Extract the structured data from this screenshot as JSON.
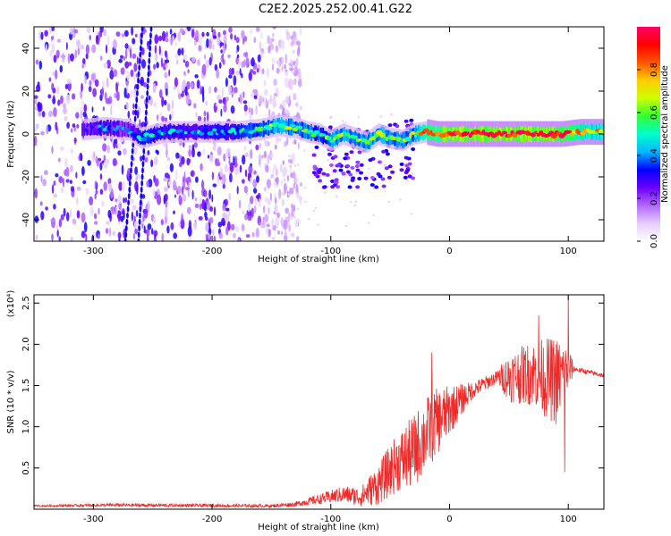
{
  "title": "C2E2.2025.252.00.41.G22",
  "colors": {
    "background": "#ffffff",
    "axis": "#000000",
    "snr_line": "#ee2b2b",
    "colormap": [
      "#ffffff",
      "#e6ccff",
      "#b266ff",
      "#6a00ff",
      "#0000ff",
      "#00b7ff",
      "#00ffcc",
      "#33ff33",
      "#ccff00",
      "#ffcc00",
      "#ff5500",
      "#ff0000",
      "#ff0066"
    ]
  },
  "chart_data": [
    {
      "type": "heatmap",
      "name": "spectrogram",
      "xlabel": "Height of straight line (km)",
      "ylabel": "Frequency (Hz)",
      "xlim": [
        -350,
        130
      ],
      "ylim": [
        -50,
        50
      ],
      "xticks": [
        -300,
        -200,
        -100,
        0,
        100
      ],
      "xtick_labels": [
        "-300",
        "-200",
        "-100",
        "0",
        "100"
      ],
      "yticks": [
        -40,
        -20,
        0,
        20,
        40
      ],
      "ytick_labels": [
        "-40",
        "-20",
        "0",
        "20",
        "40"
      ],
      "signal_track": [
        {
          "x": -310,
          "f": 2,
          "amp": 0.3
        },
        {
          "x": -290,
          "f": 3,
          "amp": 0.35
        },
        {
          "x": -270,
          "f": 2,
          "amp": 0.3
        },
        {
          "x": -260,
          "f": -2,
          "amp": 0.45
        },
        {
          "x": -240,
          "f": 1,
          "amp": 0.4
        },
        {
          "x": -220,
          "f": 1,
          "amp": 0.4
        },
        {
          "x": -200,
          "f": 1,
          "amp": 0.4
        },
        {
          "x": -180,
          "f": 1,
          "amp": 0.45
        },
        {
          "x": -160,
          "f": 2,
          "amp": 0.5
        },
        {
          "x": -145,
          "f": 4,
          "amp": 0.6
        },
        {
          "x": -130,
          "f": 3,
          "amp": 0.55
        },
        {
          "x": -120,
          "f": 1,
          "amp": 0.55
        },
        {
          "x": -110,
          "f": 0,
          "amp": 0.5
        },
        {
          "x": -100,
          "f": -3,
          "amp": 0.55
        },
        {
          "x": -90,
          "f": 0,
          "amp": 0.6
        },
        {
          "x": -80,
          "f": -2,
          "amp": 0.6
        },
        {
          "x": -70,
          "f": -4,
          "amp": 0.6
        },
        {
          "x": -60,
          "f": 0,
          "amp": 0.6
        },
        {
          "x": -50,
          "f": -2,
          "amp": 0.6
        },
        {
          "x": -40,
          "f": -3,
          "amp": 0.55
        },
        {
          "x": -30,
          "f": 0,
          "amp": 0.6
        },
        {
          "x": -20,
          "f": 1,
          "amp": 0.8
        },
        {
          "x": -10,
          "f": 0,
          "amp": 0.85
        },
        {
          "x": 0,
          "f": 0,
          "amp": 0.95
        },
        {
          "x": 20,
          "f": 0,
          "amp": 0.95
        },
        {
          "x": 40,
          "f": 0,
          "amp": 0.95
        },
        {
          "x": 60,
          "f": 0,
          "amp": 0.95
        },
        {
          "x": 80,
          "f": 0,
          "amp": 0.95
        },
        {
          "x": 95,
          "f": 0,
          "amp": 0.9
        },
        {
          "x": 110,
          "f": 1,
          "amp": 0.75
        },
        {
          "x": 130,
          "f": 1,
          "amp": 0.7
        }
      ],
      "noise_region_x": [
        -350,
        -150
      ],
      "colorbar": {
        "label": "Normalized spectral amplitude",
        "range": [
          0,
          1
        ],
        "ticks": [
          0.0,
          0.2,
          0.4,
          0.6,
          0.8
        ],
        "tick_labels": [
          "0.0",
          "0.2",
          "0.4",
          "0.6",
          "0.8"
        ]
      }
    },
    {
      "type": "line",
      "name": "snr",
      "xlabel": "Height of straight line (km)",
      "ylabel": "SNR (10 * v/v)",
      "ylabel_multiplier": "(x10⁴)",
      "xlim": [
        -350,
        130
      ],
      "ylim": [
        0,
        2.6
      ],
      "xticks": [
        -300,
        -200,
        -100,
        0,
        100
      ],
      "xtick_labels": [
        "-300",
        "-200",
        "-100",
        "0",
        "100"
      ],
      "yticks": [
        0.5,
        1.0,
        1.5,
        2.0,
        2.5
      ],
      "ytick_labels": [
        "0.5",
        "1.0",
        "1.5",
        "2.0",
        "2.5"
      ],
      "envelope": [
        {
          "x": -350,
          "mean": 0.04,
          "spread": 0.01
        },
        {
          "x": -280,
          "mean": 0.05,
          "spread": 0.02
        },
        {
          "x": -150,
          "mean": 0.04,
          "spread": 0.02
        },
        {
          "x": -130,
          "mean": 0.06,
          "spread": 0.03
        },
        {
          "x": -110,
          "mean": 0.12,
          "spread": 0.06
        },
        {
          "x": -90,
          "mean": 0.18,
          "spread": 0.1
        },
        {
          "x": -75,
          "mean": 0.15,
          "spread": 0.12
        },
        {
          "x": -60,
          "mean": 0.3,
          "spread": 0.25
        },
        {
          "x": -45,
          "mean": 0.55,
          "spread": 0.35
        },
        {
          "x": -30,
          "mean": 0.7,
          "spread": 0.45
        },
        {
          "x": -15,
          "mean": 1.0,
          "spread": 0.45
        },
        {
          "x": 0,
          "mean": 1.2,
          "spread": 0.3
        },
        {
          "x": 20,
          "mean": 1.45,
          "spread": 0.1
        },
        {
          "x": 40,
          "mean": 1.6,
          "spread": 0.08
        },
        {
          "x": 50,
          "mean": 1.6,
          "spread": 0.3
        },
        {
          "x": 70,
          "mean": 1.65,
          "spread": 0.4
        },
        {
          "x": 90,
          "mean": 1.55,
          "spread": 0.55
        },
        {
          "x": 100,
          "mean": 1.7,
          "spread": 0.3
        },
        {
          "x": 105,
          "mean": 1.7,
          "spread": 0.03
        },
        {
          "x": 130,
          "mean": 1.62,
          "spread": 0.03
        }
      ],
      "peaks": [
        {
          "x": -15,
          "y": 1.9
        },
        {
          "x": 75,
          "y": 2.35
        },
        {
          "x": 100,
          "y": 2.6
        },
        {
          "x": 97,
          "y": 0.45
        }
      ]
    }
  ]
}
